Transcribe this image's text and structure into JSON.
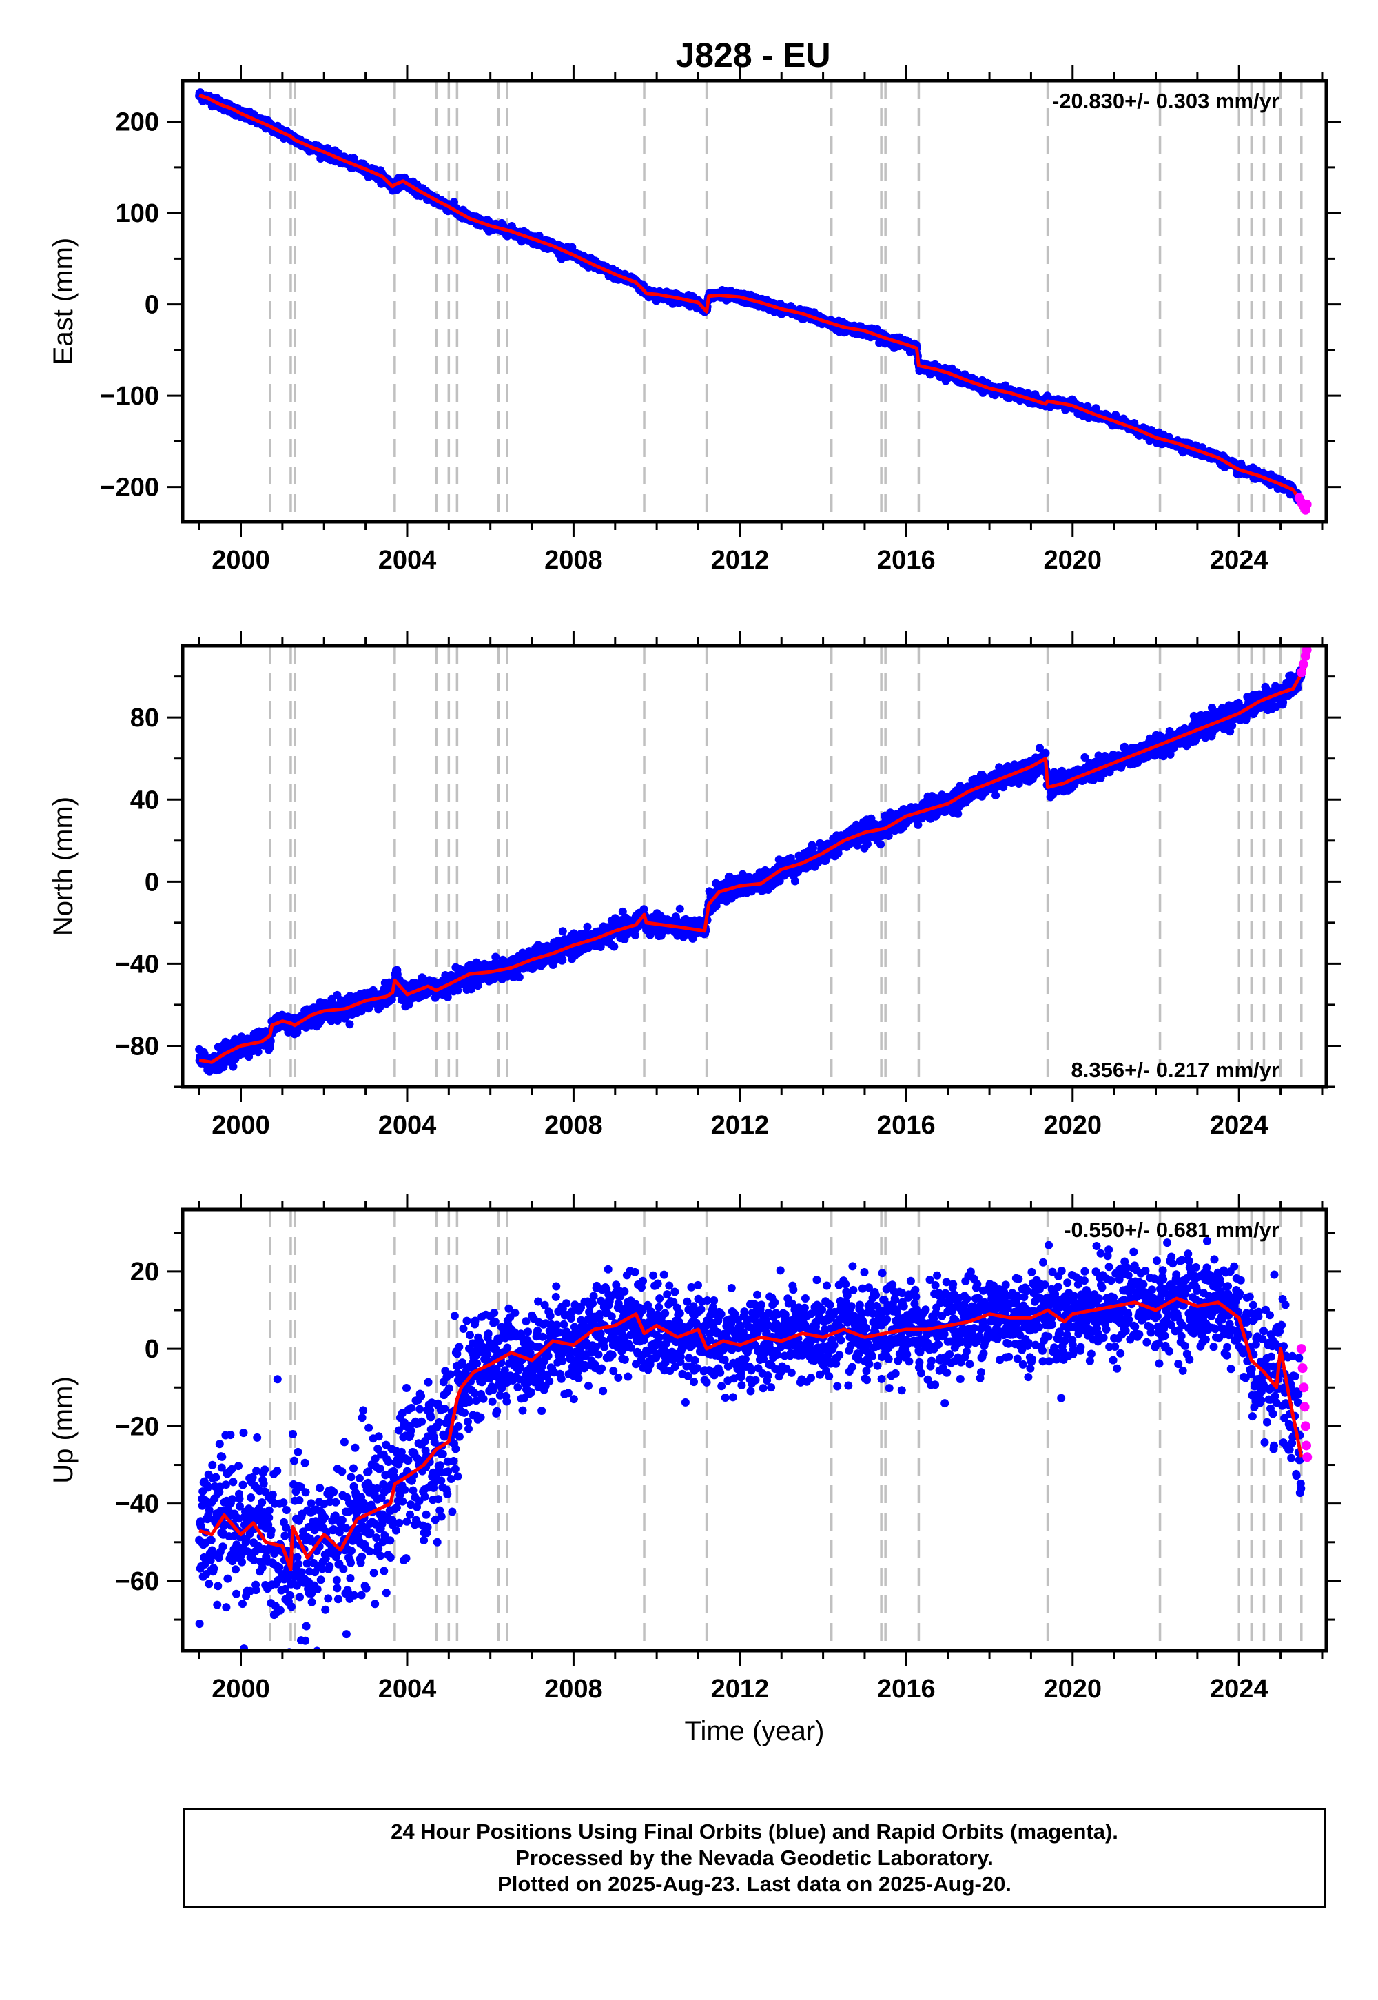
{
  "title": "J828 - EU",
  "footer": {
    "line1": "24 Hour Positions Using Final Orbits (blue) and Rapid Orbits (magenta).",
    "line2": "Processed by the Nevada Geodetic Laboratory.",
    "line3": "Plotted on 2025-Aug-23. Last data on 2025-Aug-20."
  },
  "colors": {
    "final": "#0000ff",
    "rapid": "#ff00ff",
    "model": "#ff0000",
    "steps": "#c0c0c0"
  },
  "chart_data": [
    {
      "type": "scatter",
      "name": "east",
      "ylabel": "East (mm)",
      "xlabel": "",
      "rate_text": "-20.830+/- 0.303 mm/yr",
      "rate_position": "top-right",
      "xlim": [
        1998.6,
        2026.1
      ],
      "ylim": [
        -238,
        245
      ],
      "xticks": [
        2000,
        2004,
        2008,
        2012,
        2016,
        2020,
        2024
      ],
      "yticks": [
        -200,
        -100,
        0,
        100,
        200
      ],
      "xminor": 1,
      "yminor": 50,
      "model_x": [
        1999.0,
        1999.2,
        1999.5,
        1999.8,
        2000.0,
        2000.3,
        2000.7,
        2001.0,
        2001.2,
        2001.3,
        2001.7,
        2002.0,
        2002.5,
        2003.0,
        2003.4,
        2003.65,
        2003.7,
        2003.9,
        2004.3,
        2004.7,
        2005.0,
        2005.5,
        2006.0,
        2006.5,
        2007.0,
        2007.5,
        2008.0,
        2008.5,
        2009.0,
        2009.5,
        2009.7,
        2009.75,
        2010.0,
        2010.5,
        2011.0,
        2011.2,
        2011.25,
        2011.5,
        2012.0,
        2012.5,
        2013.0,
        2013.5,
        2014.0,
        2014.5,
        2015.0,
        2015.5,
        2016.0,
        2016.25,
        2016.3,
        2016.7,
        2017.0,
        2017.5,
        2018.0,
        2018.5,
        2019.0,
        2019.35,
        2019.4,
        2019.8,
        2020.0,
        2020.5,
        2021.0,
        2021.5,
        2022.0,
        2022.5,
        2023.0,
        2023.5,
        2024.0,
        2024.5,
        2025.0,
        2025.3,
        2025.55
      ],
      "model_y": [
        229,
        226,
        219,
        214,
        209,
        203,
        195,
        188,
        184,
        180,
        172,
        167,
        157,
        148,
        140,
        129,
        131,
        135,
        124,
        114,
        107,
        94,
        86,
        80,
        72,
        64,
        54,
        43,
        33,
        24,
        15,
        12,
        11,
        7,
        2,
        -8,
        9,
        10,
        8,
        2,
        -5,
        -10,
        -18,
        -25,
        -29,
        -37,
        -44,
        -48,
        -67,
        -71,
        -75,
        -84,
        -92,
        -97,
        -104,
        -109,
        -106,
        -109,
        -111,
        -120,
        -128,
        -136,
        -146,
        -152,
        -160,
        -168,
        -181,
        -188,
        -197,
        -203,
        -221
      ],
      "rapid_x": [
        2025.45,
        2025.5,
        2025.55,
        2025.6,
        2025.63
      ],
      "rapid_y": [
        -212,
        -217,
        -221,
        -225,
        -219
      ],
      "noise": 2.5,
      "steps": [
        2000.7,
        2001.2,
        2001.3,
        2003.7,
        2004.7,
        2005.0,
        2005.2,
        2006.2,
        2006.4,
        2009.7,
        2011.2,
        2014.2,
        2015.4,
        2015.5,
        2016.3,
        2019.4,
        2022.1,
        2024.0,
        2024.3,
        2024.6,
        2025.0,
        2025.5
      ]
    },
    {
      "type": "scatter",
      "name": "north",
      "ylabel": "North (mm)",
      "xlabel": "",
      "rate_text": "8.356+/- 0.217 mm/yr",
      "rate_position": "bottom-right",
      "xlim": [
        1998.6,
        2026.1
      ],
      "ylim": [
        -100,
        115
      ],
      "xticks": [
        2000,
        2004,
        2008,
        2012,
        2016,
        2020,
        2024
      ],
      "yticks": [
        -80,
        -40,
        0,
        40,
        80
      ],
      "xminor": 1,
      "yminor": 20,
      "model_x": [
        1999.0,
        1999.3,
        1999.6,
        2000.0,
        2000.5,
        2000.7,
        2000.75,
        2001.0,
        2001.2,
        2001.3,
        2001.7,
        2002.0,
        2002.5,
        2003.0,
        2003.5,
        2003.65,
        2003.7,
        2004.0,
        2004.5,
        2004.7,
        2005.0,
        2005.5,
        2006.0,
        2006.5,
        2007.0,
        2007.5,
        2008.0,
        2008.5,
        2009.0,
        2009.5,
        2009.7,
        2009.75,
        2010.5,
        2011.15,
        2011.25,
        2011.5,
        2012.0,
        2012.5,
        2013.0,
        2013.5,
        2014.0,
        2014.5,
        2015.0,
        2015.5,
        2016.0,
        2016.5,
        2017.0,
        2017.5,
        2018.0,
        2018.5,
        2019.0,
        2019.35,
        2019.4,
        2019.8,
        2020.0,
        2020.5,
        2021.0,
        2021.5,
        2022.0,
        2022.5,
        2023.0,
        2023.5,
        2024.0,
        2024.5,
        2025.0,
        2025.3,
        2025.6
      ],
      "model_y": [
        -87,
        -88,
        -84,
        -80,
        -78,
        -75,
        -70,
        -68,
        -69,
        -70,
        -65,
        -63,
        -62,
        -58,
        -56,
        -54,
        -48,
        -55,
        -51,
        -53,
        -50,
        -45,
        -44,
        -42,
        -38,
        -35,
        -31,
        -28,
        -24,
        -21,
        -16,
        -20,
        -22,
        -24,
        -11,
        -5,
        -2,
        -1,
        6,
        9,
        14,
        20,
        24,
        26,
        32,
        35,
        38,
        44,
        48,
        52,
        56,
        60,
        46,
        48,
        50,
        54,
        58,
        62,
        66,
        70,
        74,
        78,
        82,
        88,
        92,
        94,
        105
      ],
      "rapid_x": [
        2025.5,
        2025.55,
        2025.6,
        2025.63
      ],
      "rapid_y": [
        102,
        106,
        110,
        113
      ],
      "noise": 2.5,
      "steps": [
        2000.7,
        2001.2,
        2001.3,
        2003.7,
        2004.7,
        2005.0,
        2005.2,
        2006.2,
        2006.4,
        2009.7,
        2011.2,
        2014.2,
        2015.4,
        2015.5,
        2016.3,
        2019.4,
        2022.1,
        2024.0,
        2024.3,
        2024.6,
        2025.0,
        2025.5
      ]
    },
    {
      "type": "scatter",
      "name": "up",
      "ylabel": "Up (mm)",
      "xlabel": "Time (year)",
      "rate_text": "-0.550+/- 0.681 mm/yr",
      "rate_position": "top-right",
      "xlim": [
        1998.6,
        2026.1
      ],
      "ylim": [
        -78,
        36
      ],
      "xticks": [
        2000,
        2004,
        2008,
        2012,
        2016,
        2020,
        2024
      ],
      "yticks": [
        -60,
        -40,
        -20,
        0,
        20
      ],
      "xminor": 1,
      "yminor": 10,
      "model_x": [
        1999.0,
        1999.3,
        1999.6,
        2000.0,
        2000.3,
        2000.6,
        2001.0,
        2001.2,
        2001.25,
        2001.6,
        2002.0,
        2002.4,
        2002.8,
        2003.2,
        2003.6,
        2003.7,
        2004.0,
        2004.4,
        2004.7,
        2005.0,
        2005.2,
        2005.3,
        2005.6,
        2006.0,
        2006.5,
        2007.0,
        2007.5,
        2008.0,
        2008.5,
        2009.0,
        2009.5,
        2009.7,
        2010.0,
        2010.5,
        2011.0,
        2011.2,
        2011.6,
        2012.0,
        2012.5,
        2013.0,
        2013.5,
        2014.0,
        2014.5,
        2015.0,
        2015.5,
        2016.0,
        2016.5,
        2017.0,
        2017.5,
        2018.0,
        2018.5,
        2019.0,
        2019.4,
        2019.8,
        2020.0,
        2020.5,
        2021.0,
        2021.5,
        2022.0,
        2022.5,
        2023.0,
        2023.5,
        2024.0,
        2024.3,
        2024.6,
        2024.9,
        2025.0,
        2025.2,
        2025.5
      ],
      "model_y": [
        -47,
        -48,
        -43,
        -48,
        -45,
        -50,
        -51,
        -57,
        -46,
        -54,
        -48,
        -52,
        -44,
        -42,
        -40,
        -35,
        -33,
        -30,
        -26,
        -24,
        -13,
        -10,
        -6,
        -4,
        -1,
        -3,
        2,
        1,
        5,
        6,
        9,
        4,
        6,
        3,
        5,
        0,
        2,
        1,
        3,
        2,
        4,
        3,
        5,
        3,
        4,
        5,
        5,
        6,
        7,
        9,
        8,
        8,
        10,
        7,
        9,
        10,
        11,
        12,
        10,
        13,
        11,
        12,
        8,
        -3,
        -6,
        -10,
        0,
        -12,
        -28
      ],
      "rapid_x": [
        2025.5,
        2025.53,
        2025.56,
        2025.58,
        2025.6,
        2025.62,
        2025.64
      ],
      "rapid_y": [
        0,
        -5,
        -10,
        -15,
        -20,
        -25,
        -28
      ],
      "noise": 9,
      "steps": [
        2000.7,
        2001.2,
        2001.3,
        2003.7,
        2004.7,
        2005.0,
        2005.2,
        2006.2,
        2006.4,
        2009.7,
        2011.2,
        2014.2,
        2015.4,
        2015.5,
        2016.3,
        2019.4,
        2022.1,
        2024.0,
        2024.3,
        2024.6,
        2025.0,
        2025.5
      ]
    }
  ]
}
